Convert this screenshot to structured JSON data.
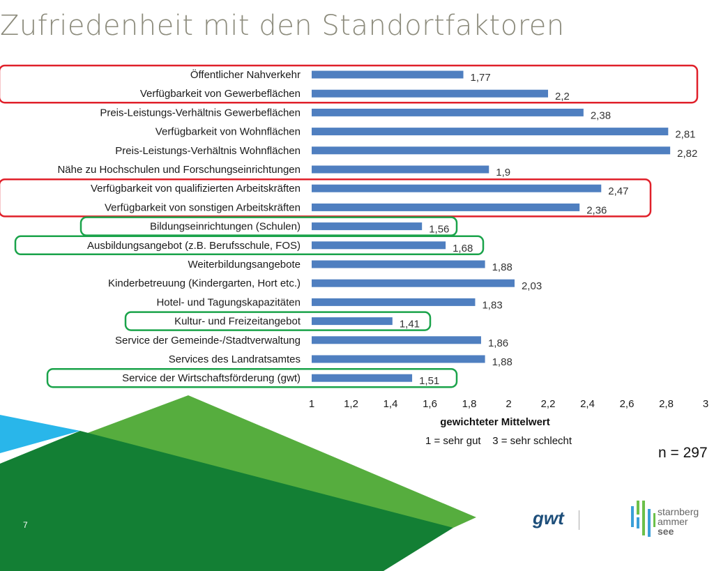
{
  "title": "Zufriedenheit mit den Standortfaktoren",
  "chart_data": {
    "type": "bar",
    "orientation": "horizontal",
    "categories": [
      "Öffentlicher Nahverkehr",
      "Verfügbarkeit von Gewerbeflächen",
      "Preis-Leistungs-Verhältnis Gewerbeflächen",
      "Verfügbarkeit von Wohnflächen",
      "Preis-Leistungs-Verhältnis Wohnflächen",
      "Nähe zu Hochschulen und Forschungseinrichtungen",
      "Verfügbarkeit von qualifizierten Arbeitskräften",
      "Verfügbarkeit von sonstigen Arbeitskräften",
      "Bildungseinrichtungen (Schulen)",
      "Ausbildungsangebot (z.B. Berufsschule, FOS)",
      "Weiterbildungsangebote",
      "Kinderbetreuung (Kindergarten, Hort etc.)",
      "Hotel- und Tagungskapazitäten",
      "Kultur- und Freizeitangebot",
      "Service der Gemeinde-/Stadtverwaltung",
      "Services des Landratsamtes",
      "Service der Wirtschaftsförderung (gwt)"
    ],
    "values": [
      1.77,
      2.2,
      2.38,
      2.81,
      2.82,
      1.9,
      2.47,
      2.36,
      1.56,
      1.68,
      1.88,
      2.03,
      1.83,
      1.41,
      1.86,
      1.88,
      1.51
    ],
    "value_labels": [
      "1,77",
      "2,2",
      "2,38",
      "2,81",
      "2,82",
      "1,9",
      "2,47",
      "2,36",
      "1,56",
      "1,68",
      "1,88",
      "2,03",
      "1,83",
      "1,41",
      "1,86",
      "1,88",
      "1,51"
    ],
    "xlim": [
      1,
      3
    ],
    "xticks": [
      "1",
      "1,2",
      "1,4",
      "1,6",
      "1,8",
      "2",
      "2,2",
      "2,4",
      "2,6",
      "2,8",
      "3"
    ],
    "xlabel": "gewichteter Mittelwert",
    "scale_note": "1 = sehr gut    3 = sehr schlecht",
    "bar_color": "#4f7fc0",
    "grid": false,
    "highlight_red": [
      [
        1,
        4
      ],
      [
        6,
        7
      ]
    ],
    "highlight_green": [
      [
        8,
        8
      ],
      [
        9,
        9
      ],
      [
        13,
        13
      ],
      [
        16,
        16
      ]
    ],
    "highlight_colors": {
      "red": "#e0202a",
      "green": "#1aa34a"
    }
  },
  "sample_size": "n = 297",
  "page_number": "7",
  "logos": {
    "gwt": "gwt",
    "starnberg": [
      "starnberg",
      "ammer",
      "see"
    ]
  }
}
